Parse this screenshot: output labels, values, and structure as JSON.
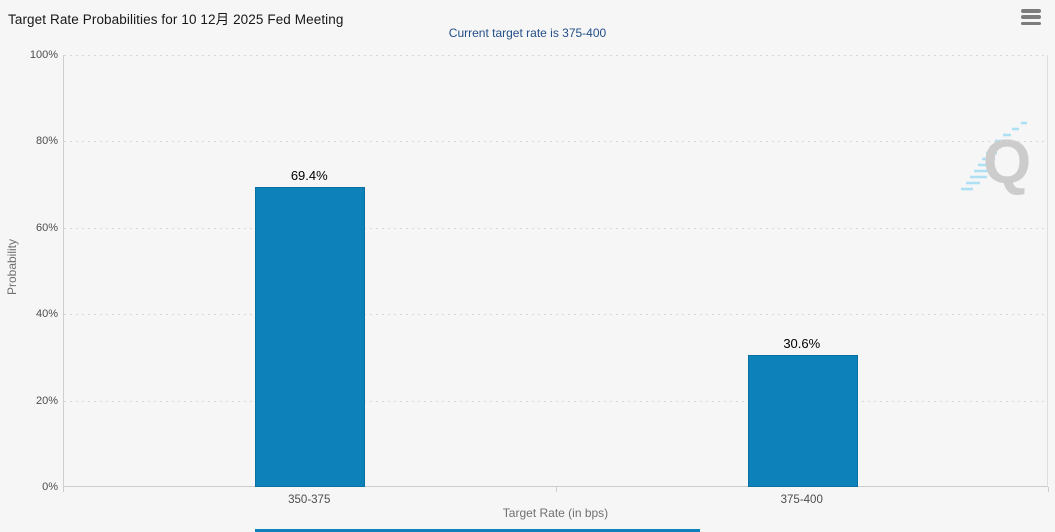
{
  "header": {
    "title": "Target Rate Probabilities for 10 12月 2025 Fed Meeting",
    "menu_tooltip": "Chart context menu"
  },
  "chart_data": {
    "type": "bar",
    "title": "Target Rate Probabilities for 10 12月 2025 Fed Meeting",
    "subtitle": "Current target rate is 375-400",
    "categories": [
      "350-375",
      "375-400"
    ],
    "values": [
      69.4,
      30.6
    ],
    "value_labels": [
      "69.4%",
      "30.6%"
    ],
    "xlabel": "Target Rate (in bps)",
    "ylabel": "Probability",
    "ylim": [
      0,
      100
    ],
    "ytick_interval": 20,
    "ytick_labels": [
      "0%",
      "20%",
      "40%",
      "60%",
      "80%",
      "100%"
    ],
    "grid": "horizontal-dotted",
    "legend_position": "none",
    "bar_color": "#0d82ba",
    "bar_border_color": "#0a6fa3",
    "subtitle_color": "#234f86",
    "background_color": "#f6f6f7"
  },
  "watermark": {
    "name": "quikstrike-q-logo",
    "letter": "Q"
  }
}
